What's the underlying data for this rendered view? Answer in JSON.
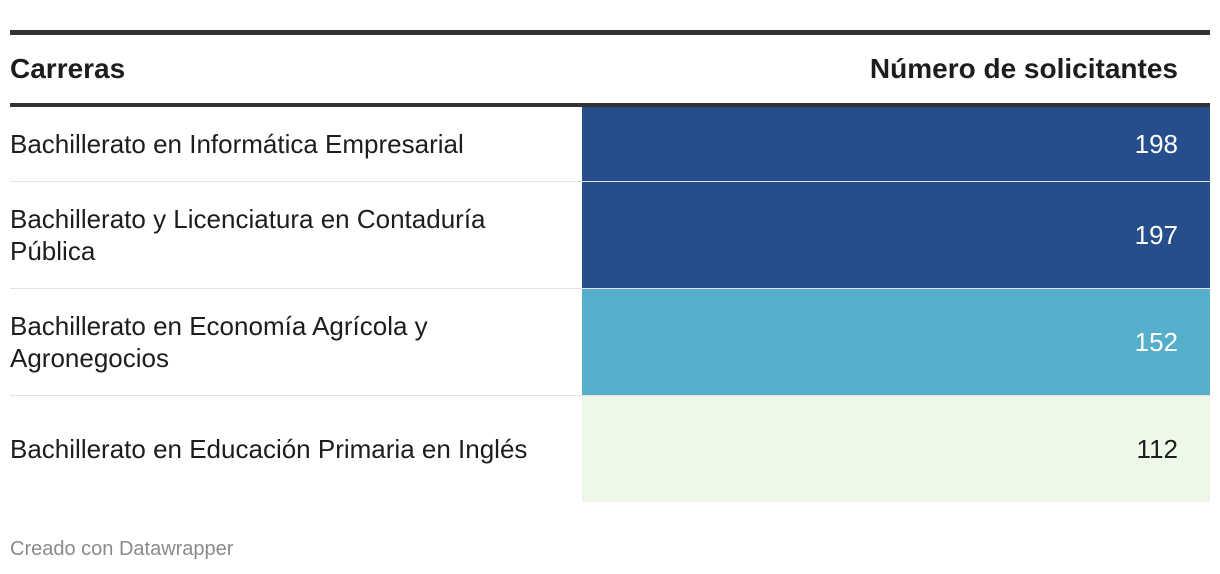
{
  "table": {
    "col_label": "Carreras",
    "col_value": "Número de solicitantes"
  },
  "chart_data": {
    "type": "table",
    "columns": [
      "Carreras",
      "Número de solicitantes"
    ],
    "rows": [
      {
        "label": "Bachillerato en Informática Empresarial",
        "value": 198,
        "color": "#264d8c",
        "text_color": "#ffffff"
      },
      {
        "label": "Bachillerato y Licenciatura en Contaduría Pública",
        "value": 197,
        "color": "#264d8c",
        "text_color": "#ffffff"
      },
      {
        "label": "Bachillerato en Economía Agrícola y Agronegocios",
        "value": 152,
        "color": "#56afca",
        "text_color": "#ffffff"
      },
      {
        "label": "Bachillerato en Educación Primaria en Inglés",
        "value": 112,
        "color": "#eef8e8",
        "text_color": "#1d1d1d"
      }
    ]
  },
  "footer": {
    "credit": "Creado con Datawrapper"
  }
}
